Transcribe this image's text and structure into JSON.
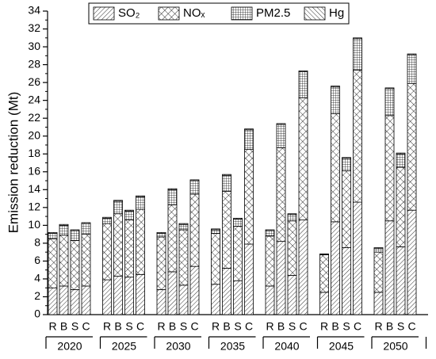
{
  "chart_data": {
    "type": "stacked_bar",
    "ylabel": "Emission reduction (Mt)",
    "groups": [
      "2020",
      "2025",
      "2030",
      "2035",
      "2040",
      "2045",
      "2050"
    ],
    "categories": [
      "R",
      "B",
      "S",
      "C",
      "R",
      "B",
      "S",
      "C",
      "R",
      "B",
      "S",
      "C",
      "R",
      "B",
      "S",
      "C",
      "R",
      "B",
      "S",
      "C",
      "R",
      "B",
      "S",
      "C",
      "R",
      "B",
      "S",
      "C"
    ],
    "ylim": [
      0,
      34
    ],
    "yticks": [
      0,
      2,
      4,
      6,
      8,
      10,
      12,
      14,
      16,
      18,
      20,
      22,
      24,
      26,
      28,
      30,
      32,
      34
    ],
    "legend_position": "upper center",
    "series": [
      {
        "name": "SO₂",
        "color": "#000000",
        "pattern": "diagonal",
        "values": [
          3.0,
          3.2,
          2.8,
          3.2,
          3.9,
          4.3,
          4.2,
          4.5,
          2.8,
          4.8,
          3.3,
          5.4,
          3.4,
          5.2,
          3.8,
          7.9,
          3.2,
          8.2,
          4.4,
          10.6,
          2.5,
          10.4,
          7.5,
          12.6,
          2.5,
          10.5,
          7.6,
          11.7
        ]
      },
      {
        "name": "NOₓ",
        "color": "#000000",
        "pattern": "crosshatch",
        "values": [
          5.5,
          5.7,
          5.5,
          5.8,
          6.3,
          7.0,
          6.4,
          7.3,
          5.9,
          7.5,
          6.2,
          8.1,
          5.7,
          8.6,
          6.1,
          10.6,
          5.6,
          10.5,
          6.1,
          13.7,
          4.2,
          12.1,
          8.6,
          14.8,
          4.5,
          11.8,
          8.9,
          14.2
        ]
      },
      {
        "name": "PM2.5",
        "color": "#000000",
        "pattern": "grid",
        "values": [
          0.6,
          1.1,
          1.1,
          1.2,
          0.6,
          1.4,
          1.0,
          1.4,
          0.4,
          1.7,
          0.6,
          1.5,
          0.4,
          1.8,
          0.8,
          2.2,
          0.6,
          2.6,
          0.7,
          2.9,
          0.05,
          3.0,
          1.4,
          3.5,
          0.4,
          3.0,
          1.5,
          3.2
        ]
      },
      {
        "name": "Hg",
        "color": "#000000",
        "pattern": "backdiagonal",
        "values": [
          0.1,
          0.1,
          0.1,
          0.1,
          0.1,
          0.1,
          0.1,
          0.1,
          0.1,
          0.1,
          0.1,
          0.1,
          0.1,
          0.1,
          0.1,
          0.1,
          0.1,
          0.1,
          0.1,
          0.1,
          0.05,
          0.1,
          0.1,
          0.1,
          0.1,
          0.1,
          0.1,
          0.1
        ]
      }
    ]
  }
}
